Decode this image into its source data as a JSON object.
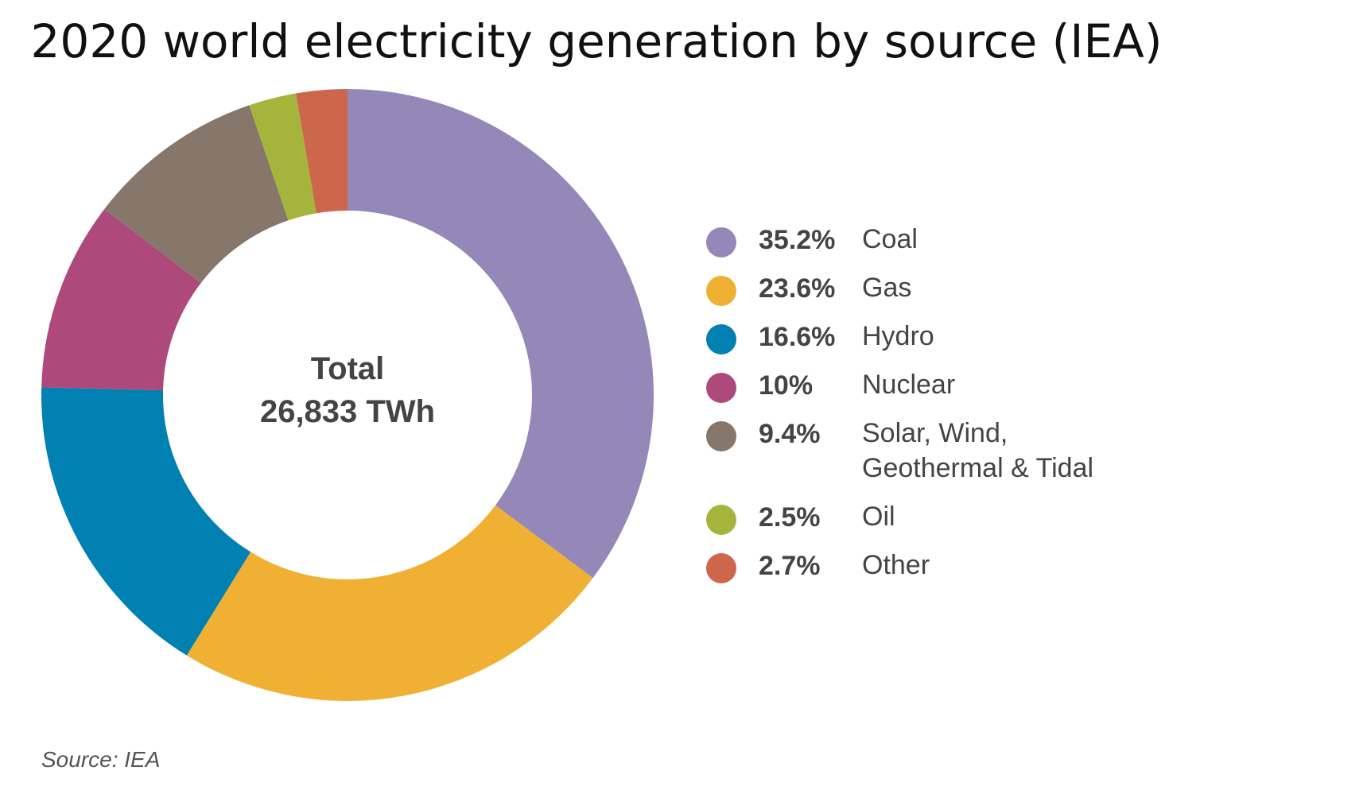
{
  "chart_data": {
    "type": "pie",
    "title": "2020 world electricity generation by source (IEA)",
    "center_label": [
      "Total",
      "26,833 TWh"
    ],
    "slices": [
      {
        "label": "Coal",
        "value": 35.2,
        "pct_label": "35.2%",
        "color": "#9488b8"
      },
      {
        "label": "Gas",
        "value": 23.6,
        "pct_label": "23.6%",
        "color": "#f0b033"
      },
      {
        "label": "Hydro",
        "value": 16.6,
        "pct_label": "16.6%",
        "color": "#0180b2"
      },
      {
        "label": "Nuclear",
        "value": 10,
        "pct_label": "10%",
        "color": "#ae4a7b"
      },
      {
        "label": "Solar, Wind, Geothermal & Tidal",
        "value": 9.4,
        "pct_label": "9.4%",
        "color": "#86776a"
      },
      {
        "label": "Oil",
        "value": 2.5,
        "pct_label": "2.5%",
        "color": "#a5b53c"
      },
      {
        "label": "Other",
        "value": 2.7,
        "pct_label": "2.7%",
        "color": "#cd674c"
      }
    ],
    "legend_position": "right",
    "source": "Source: IEA"
  }
}
